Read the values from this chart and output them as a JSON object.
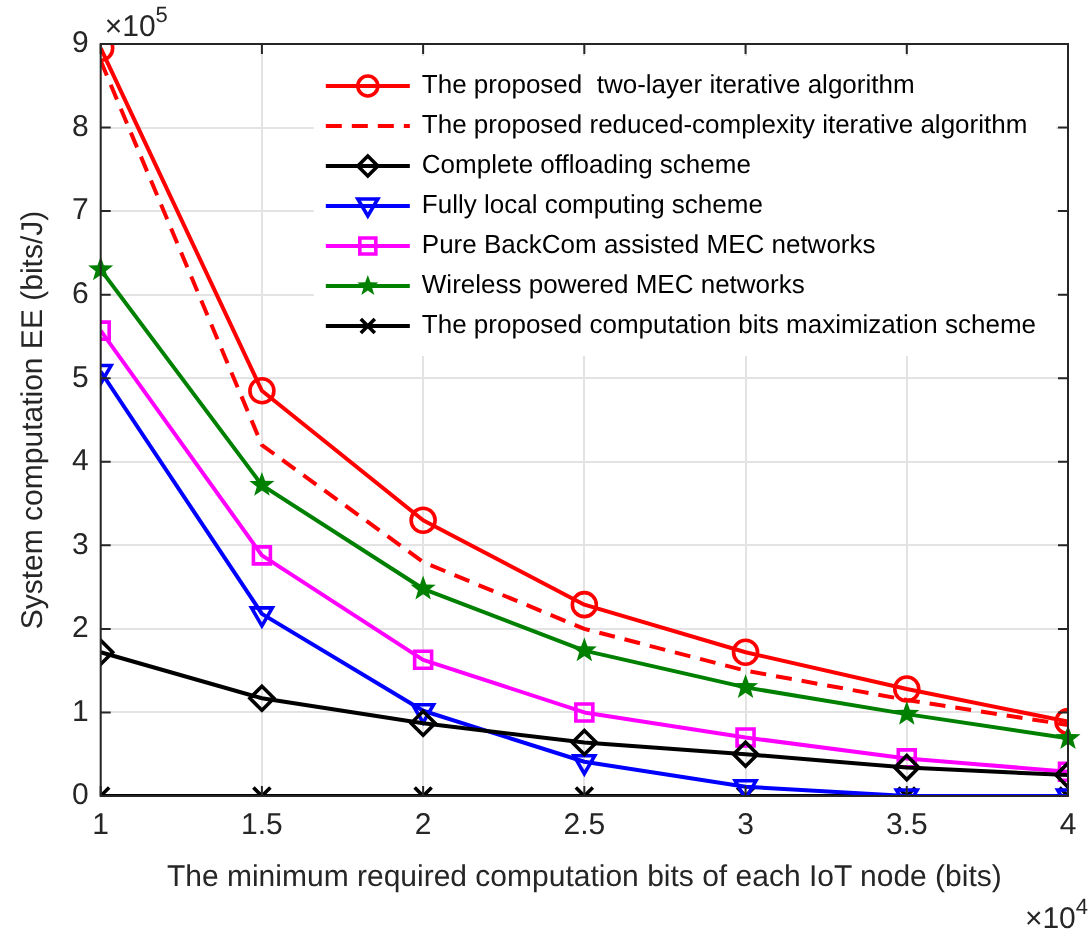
{
  "chart_data": {
    "type": "line",
    "xlabel": "The minimum required computation bits of each IoT node (bits)",
    "ylabel": "System computation EE (bits/J)",
    "annotations": [
      "×10$^{5}$",
      "×10$^{4}$"
    ],
    "x": [
      1,
      1.5,
      2,
      2.5,
      3,
      3.5,
      4
    ],
    "series": [
      {
        "name": "The proposed  two-layer iterative algorithm",
        "color": "#ff0000",
        "marker": "circle",
        "line_style": "solid",
        "values": [
          8.95,
          4.85,
          3.3,
          2.29,
          1.72,
          1.28,
          0.89
        ]
      },
      {
        "name": "The proposed reduced-complexity iterative algorithm",
        "color": "#ff0000",
        "marker": "none",
        "line_style": "dashed",
        "values": [
          8.8,
          4.2,
          2.8,
          2.0,
          1.5,
          1.15,
          0.85
        ]
      },
      {
        "name": "Complete offloading scheme",
        "color": "#000000",
        "marker": "diamond",
        "line_style": "solid",
        "values": [
          1.72,
          1.17,
          0.87,
          0.64,
          0.5,
          0.34,
          0.25
        ]
      },
      {
        "name": "Fully local computing scheme",
        "color": "#0000ff",
        "marker": "triangle",
        "line_style": "solid",
        "values": [
          5.08,
          2.18,
          1.02,
          0.41,
          0.11,
          0,
          0
        ]
      },
      {
        "name": "Pure BackCom assisted MEC networks",
        "color": "#ff00ff",
        "marker": "square",
        "line_style": "solid",
        "values": [
          5.57,
          2.88,
          1.63,
          1.0,
          0.7,
          0.45,
          0.29
        ]
      },
      {
        "name": "Wireless powered MEC networks",
        "color": "#008000",
        "marker": "star",
        "line_style": "solid",
        "values": [
          6.3,
          3.72,
          2.48,
          1.74,
          1.3,
          0.98,
          0.69
        ]
      },
      {
        "name": "The proposed computation bits maximization scheme",
        "color": "#000000",
        "marker": "cross",
        "line_style": "solid",
        "values": [
          0,
          0,
          0,
          0,
          0,
          0,
          0
        ]
      }
    ],
    "xlim": [
      1,
      4
    ],
    "xticks": [
      1,
      1.5,
      2,
      2.5,
      3,
      3.5,
      4
    ],
    "ylim": [
      0,
      9
    ],
    "yticks": [
      0,
      1,
      2,
      3,
      4,
      5,
      6,
      7,
      8,
      9
    ],
    "grid": true,
    "legend": "top right"
  }
}
